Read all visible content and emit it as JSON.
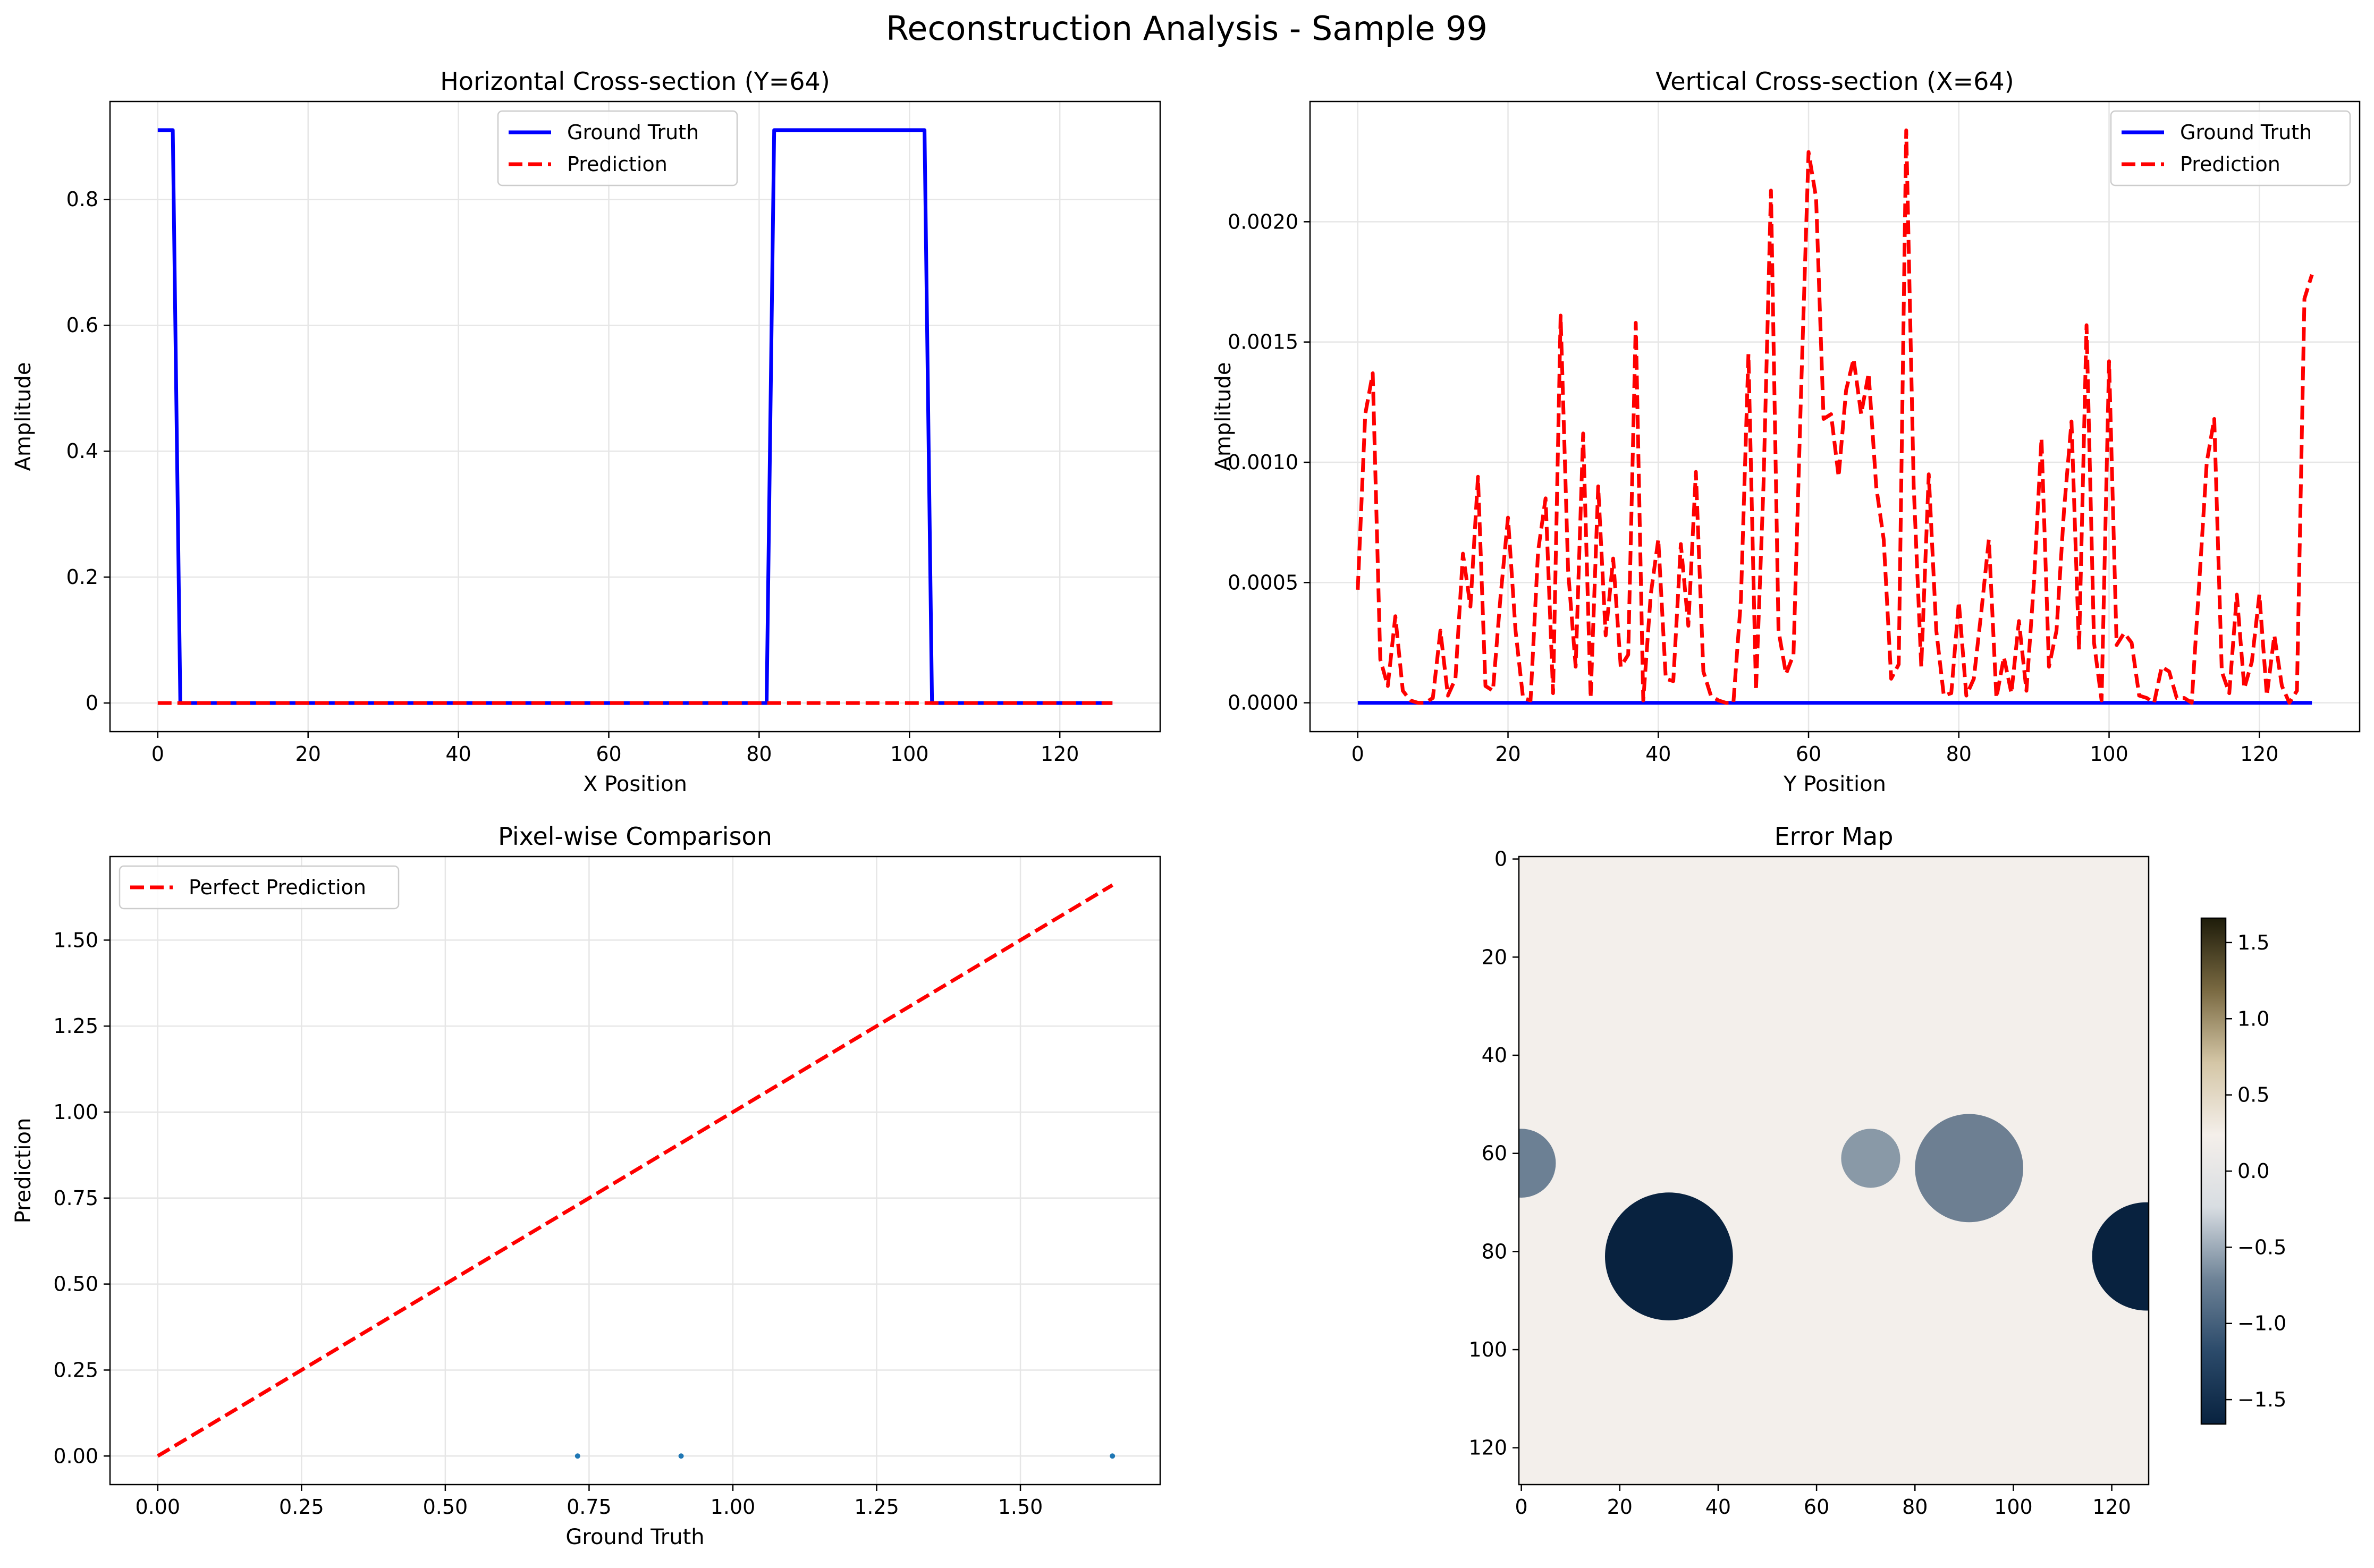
{
  "figure": {
    "title": "Reconstruction Analysis - Sample 99"
  },
  "chart_data": [
    {
      "type": "line",
      "title": "Horizontal Cross-section (Y=64)",
      "xlabel": "X Position",
      "ylabel": "Amplitude",
      "xlim": [
        -6.35,
        133.35
      ],
      "ylim": [
        -0.0455,
        0.9555
      ],
      "xticks": [
        0,
        20,
        40,
        60,
        80,
        100,
        120
      ],
      "yticks": [
        0.0,
        0.2,
        0.4,
        0.6,
        0.8
      ],
      "grid": true,
      "legend": {
        "location": "upper center",
        "entries": [
          "Ground Truth",
          "Prediction"
        ]
      },
      "series": [
        {
          "name": "Ground Truth",
          "color": "#0000ff",
          "style": "solid",
          "x": [
            0,
            2,
            3,
            81,
            82,
            102,
            103,
            127
          ],
          "y": [
            0.91,
            0.91,
            0.0,
            0.0,
            0.91,
            0.91,
            0.0,
            0.0
          ]
        },
        {
          "name": "Prediction",
          "color": "#ff0000",
          "style": "dashed",
          "x": [
            0,
            127
          ],
          "y": [
            0.0,
            0.0
          ]
        }
      ]
    },
    {
      "type": "line",
      "title": "Vertical Cross-section (X=64)",
      "xlabel": "Y Position",
      "ylabel": "Amplitude",
      "xlim": [
        -6.35,
        133.35
      ],
      "ylim": [
        -0.00012,
        0.0025
      ],
      "xticks": [
        0,
        20,
        40,
        60,
        80,
        100,
        120
      ],
      "yticks": [
        0.0,
        0.0005,
        0.001,
        0.0015,
        0.002
      ],
      "ytick_labels": [
        "0.0000",
        "0.0005",
        "0.0010",
        "0.0015",
        "0.0020"
      ],
      "grid": true,
      "legend": {
        "location": "upper right",
        "entries": [
          "Ground Truth",
          "Prediction"
        ]
      },
      "series": [
        {
          "name": "Ground Truth",
          "color": "#0000ff",
          "style": "solid",
          "x": [
            0,
            127
          ],
          "y": [
            0.0,
            0.0
          ]
        },
        {
          "name": "Prediction",
          "color": "#ff0000",
          "style": "dashed",
          "x": [
            0,
            1,
            2,
            3,
            4,
            5,
            6,
            7,
            8,
            9,
            10,
            11,
            12,
            13,
            14,
            15,
            16,
            17,
            18,
            19,
            20,
            21,
            22,
            23,
            24,
            25,
            26,
            27,
            28,
            29,
            30,
            31,
            32,
            33,
            34,
            35,
            36,
            37,
            38,
            39,
            40,
            41,
            42,
            43,
            44,
            45,
            46,
            47,
            48,
            49,
            50,
            51,
            52,
            53,
            54,
            55,
            56,
            57,
            58,
            59,
            60,
            61,
            62,
            63,
            64,
            65,
            66,
            67,
            68,
            69,
            70,
            71,
            72,
            73,
            74,
            75,
            76,
            77,
            78,
            79,
            80,
            81,
            82,
            83,
            84,
            85,
            86,
            87,
            88,
            89,
            90,
            91,
            92,
            93,
            94,
            95,
            96,
            97,
            98,
            99,
            100,
            101,
            102,
            103,
            104,
            105,
            106,
            107,
            108,
            109,
            110,
            111,
            112,
            113,
            114,
            115,
            116,
            117,
            118,
            119,
            120,
            121,
            122,
            123,
            124,
            125,
            126,
            127
          ],
          "y": [
            0.00047,
            0.0012,
            0.00137,
            0.00018,
            7e-05,
            0.00036,
            5e-05,
            1e-05,
            0.0,
            0.0,
            2e-05,
            0.0003,
            3e-05,
            0.0001,
            0.00062,
            0.0004,
            0.00094,
            7e-05,
            5e-05,
            0.00044,
            0.00077,
            0.0003,
            2e-05,
            1e-05,
            0.00063,
            0.00085,
            4e-05,
            0.00161,
            0.00055,
            0.00015,
            0.00112,
            2e-05,
            0.0009,
            0.00028,
            0.0006,
            0.00015,
            0.0002,
            0.00158,
            1e-05,
            0.00045,
            0.00068,
            0.0001,
            9e-05,
            0.00066,
            0.00032,
            0.00096,
            0.00013,
            3e-05,
            1e-05,
            0.0,
            0.0,
            0.00043,
            0.00145,
            5e-05,
            0.0009,
            0.00213,
            0.0003,
            0.00012,
            0.0002,
            0.00129,
            0.00229,
            0.0021,
            0.00118,
            0.0012,
            0.00094,
            0.0013,
            0.00143,
            0.0012,
            0.00137,
            0.0009,
            0.00068,
            0.0001,
            0.00016,
            0.00238,
            0.0009,
            0.00015,
            0.00095,
            0.0003,
            3e-05,
            4e-05,
            0.00042,
            3e-05,
            0.0001,
            0.00038,
            0.00068,
            2e-05,
            0.00019,
            4e-05,
            0.00034,
            5e-05,
            0.0005,
            0.0011,
            0.00015,
            0.0003,
            0.0008,
            0.00117,
            0.00022,
            0.00157,
            0.00025,
            1e-05,
            0.00142,
            0.00024,
            0.00029,
            0.00025,
            3e-05,
            2e-05,
            0.0,
            0.00015,
            0.00013,
            2e-05,
            2e-05,
            0.0,
            0.0005,
            0.001,
            0.00118,
            0.00013,
            4e-05,
            0.00045,
            6e-05,
            0.00017,
            0.00045,
            3e-05,
            0.00028,
            7e-05,
            0.0,
            5e-05,
            0.00168,
            0.00178
          ]
        }
      ]
    },
    {
      "type": "scatter",
      "title": "Pixel-wise Comparison",
      "xlabel": "Ground Truth",
      "ylabel": "Prediction",
      "xlim": [
        -0.083,
        1.743
      ],
      "ylim": [
        -0.083,
        1.743
      ],
      "xticks": [
        0.0,
        0.25,
        0.5,
        0.75,
        1.0,
        1.25,
        1.5
      ],
      "xtick_labels": [
        "0.00",
        "0.25",
        "0.50",
        "0.75",
        "1.00",
        "1.25",
        "1.50"
      ],
      "yticks": [
        0.0,
        0.25,
        0.5,
        0.75,
        1.0,
        1.25,
        1.5
      ],
      "ytick_labels": [
        "0.00",
        "0.25",
        "0.50",
        "0.75",
        "1.00",
        "1.25",
        "1.50"
      ],
      "grid": true,
      "legend": {
        "location": "upper left",
        "entries": [
          "Perfect Prediction"
        ]
      },
      "points": {
        "color": "#1f77b4",
        "x": [
          0.73,
          0.91,
          1.66
        ],
        "y": [
          0.0,
          0.0,
          0.0
        ]
      },
      "series": [
        {
          "name": "Perfect Prediction",
          "color": "#ff0000",
          "style": "dashed",
          "x": [
            0.0,
            1.66
          ],
          "y": [
            0.0,
            1.66
          ]
        }
      ]
    },
    {
      "type": "heatmap",
      "title": "Error Map",
      "xlim": [
        -0.5,
        127.5
      ],
      "ylim": [
        127.5,
        -0.5
      ],
      "xticks": [
        0,
        20,
        40,
        60,
        80,
        100,
        120
      ],
      "yticks": [
        0,
        20,
        40,
        60,
        80,
        100,
        120
      ],
      "background_value": 0.0,
      "background_color": "#f3efeb",
      "blobs": [
        {
          "cx": 0,
          "cy": 62,
          "r": 7,
          "value": -0.9,
          "color": "#6c8094"
        },
        {
          "cx": 71,
          "cy": 61,
          "r": 6,
          "value": -0.65,
          "color": "#8999a7"
        },
        {
          "cx": 91,
          "cy": 63,
          "r": 11,
          "value": -0.9,
          "color": "#6d7f92"
        },
        {
          "cx": 30,
          "cy": 81,
          "r": 13,
          "value": -1.66,
          "color": "#08223f"
        },
        {
          "cx": 127,
          "cy": 81,
          "r": 11,
          "value": -1.66,
          "color": "#08223f"
        }
      ],
      "colorbar": {
        "range": [
          -1.66,
          1.66
        ],
        "ticks": [
          1.5,
          1.0,
          0.5,
          0.0,
          -0.5,
          -1.0,
          -1.5
        ],
        "tick_labels": [
          "1.5",
          "1.0",
          "0.5",
          "0.0",
          "−0.5",
          "−1.0",
          "−1.5"
        ],
        "stops": [
          "#08223f",
          "#2b4a6a",
          "#6e8397",
          "#d8dde2",
          "#f4efea",
          "#d4c6a6",
          "#7a6a42",
          "#1e1c0a"
        ]
      }
    }
  ]
}
